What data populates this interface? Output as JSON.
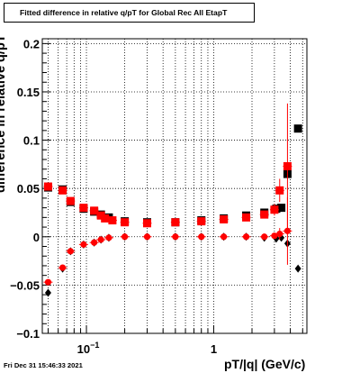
{
  "title": "Fitted difference in relative q/pT for Global Rec All EtapT",
  "footer": "Fri Dec 31 15:46:33 2021",
  "chart_data": {
    "type": "scatter",
    "title": "Fitted difference in relative q/pT for Global Rec All EtapT",
    "xlabel": "pT/|q| (GeV/c)",
    "ylabel": "difference in relative q/pT",
    "x_scale": "log",
    "xlim": [
      0.045,
      5.4
    ],
    "ylim": [
      -0.1,
      0.205
    ],
    "grid": true,
    "x_ticks": [
      {
        "v": 0.1,
        "label": "10",
        "sup": "−1"
      },
      {
        "v": 1,
        "label": "1",
        "sup": ""
      }
    ],
    "y_ticks": [
      {
        "v": 0.2,
        "label": "0.2"
      },
      {
        "v": 0.15,
        "label": "0.15"
      },
      {
        "v": 0.1,
        "label": "0.1"
      },
      {
        "v": 0.05,
        "label": "0.05"
      },
      {
        "v": 0,
        "label": "0"
      },
      {
        "v": -0.05,
        "label": "−0.05"
      },
      {
        "v": -0.1,
        "label": "−0.1"
      }
    ],
    "series": [
      {
        "marker": "square",
        "color": "#000000",
        "points": [
          [
            0.05,
            0.051
          ],
          [
            0.065,
            0.049
          ],
          [
            0.075,
            0.036
          ],
          [
            0.095,
            0.029
          ],
          [
            0.115,
            0.026
          ],
          [
            0.13,
            0.023
          ],
          [
            0.15,
            0.02
          ],
          [
            0.2,
            0.016
          ],
          [
            0.3,
            0.015
          ],
          [
            0.5,
            0.015
          ],
          [
            0.8,
            0.017
          ],
          [
            1.2,
            0.019
          ],
          [
            1.8,
            0.022
          ],
          [
            2.5,
            0.025
          ],
          [
            3.1,
            0.029
          ],
          [
            3.4,
            0.03
          ],
          [
            3.8,
            0.065
          ],
          [
            4.6,
            0.112
          ]
        ]
      },
      {
        "marker": "diamond",
        "color": "#000000",
        "points": [
          [
            0.05,
            -0.058
          ],
          [
            0.065,
            -0.033
          ],
          [
            0.075,
            -0.015
          ],
          [
            0.095,
            -0.008
          ],
          [
            0.115,
            -0.006
          ],
          [
            0.13,
            -0.003
          ],
          [
            0.15,
            -0.001
          ],
          [
            0.2,
            0.0
          ],
          [
            0.3,
            0.0
          ],
          [
            0.5,
            0.0
          ],
          [
            0.8,
            0.0
          ],
          [
            1.2,
            0.0
          ],
          [
            1.8,
            0.0
          ],
          [
            2.5,
            -0.001
          ],
          [
            3.1,
            -0.002
          ],
          [
            3.4,
            -0.001
          ],
          [
            3.8,
            -0.007
          ],
          [
            4.6,
            -0.033
          ]
        ]
      },
      {
        "marker": "square",
        "color": "#ff0000",
        "points": [
          [
            0.05,
            0.052
          ],
          [
            0.065,
            0.048
          ],
          [
            0.075,
            0.037
          ],
          [
            0.095,
            0.03
          ],
          [
            0.115,
            0.027
          ],
          [
            0.13,
            0.022
          ],
          [
            0.14,
            0.019
          ],
          [
            0.16,
            0.017
          ],
          [
            0.2,
            0.015
          ],
          [
            0.3,
            0.014
          ],
          [
            0.5,
            0.015
          ],
          [
            0.8,
            0.016
          ],
          [
            1.2,
            0.018
          ],
          [
            1.8,
            0.02
          ],
          [
            2.5,
            0.023
          ],
          [
            3.0,
            0.028
          ],
          [
            3.3,
            0.048
          ],
          [
            3.8,
            0.073
          ]
        ],
        "err": [
          0.001,
          0.001,
          0.001,
          0.001,
          0.001,
          0.001,
          0.001,
          0.001,
          0.001,
          0.001,
          0.001,
          0.001,
          0.001,
          0.002,
          0.003,
          0.006,
          0.012,
          0.065
        ]
      },
      {
        "marker": "circle",
        "color": "#ff0000",
        "points": [
          [
            0.05,
            -0.047
          ],
          [
            0.065,
            -0.032
          ],
          [
            0.075,
            -0.015
          ],
          [
            0.095,
            -0.008
          ],
          [
            0.115,
            -0.006
          ],
          [
            0.13,
            -0.003
          ],
          [
            0.15,
            -0.001
          ],
          [
            0.2,
            0.0
          ],
          [
            0.3,
            0.0
          ],
          [
            0.5,
            0.0
          ],
          [
            0.8,
            0.0
          ],
          [
            1.2,
            0.0
          ],
          [
            1.8,
            0.0
          ],
          [
            2.5,
            0.0
          ],
          [
            3.0,
            0.001
          ],
          [
            3.3,
            0.003
          ],
          [
            3.8,
            0.006
          ]
        ],
        "err": [
          0.001,
          0.001,
          0.001,
          0.001,
          0.001,
          0.001,
          0.001,
          0.001,
          0.001,
          0.001,
          0.001,
          0.001,
          0.001,
          0.002,
          0.003,
          0.006,
          0.035
        ]
      }
    ]
  }
}
